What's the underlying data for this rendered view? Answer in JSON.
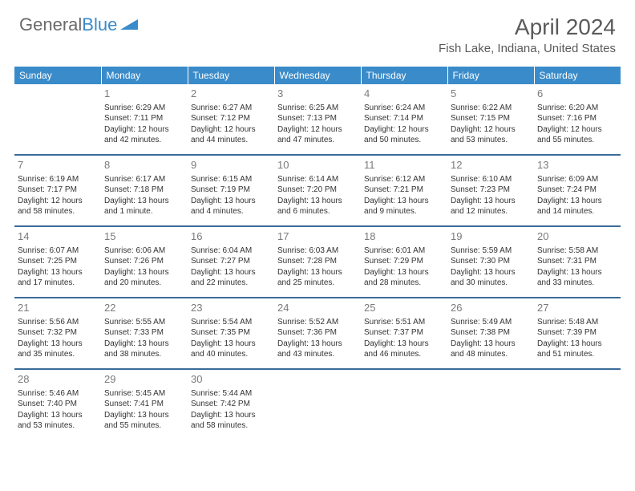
{
  "brand": {
    "part1": "General",
    "part2": "Blue"
  },
  "title": "April 2024",
  "location": "Fish Lake, Indiana, United States",
  "colors": {
    "header_bg": "#3a8bc9",
    "row_sep": "#3a6b9a",
    "text": "#333333",
    "muted": "#7a7a7a",
    "logo_gray": "#6a6a6a",
    "logo_blue": "#3a8bc9",
    "bg": "#ffffff"
  },
  "weekdays": [
    "Sunday",
    "Monday",
    "Tuesday",
    "Wednesday",
    "Thursday",
    "Friday",
    "Saturday"
  ],
  "weeks": [
    [
      null,
      {
        "n": "1",
        "sr": "Sunrise: 6:29 AM",
        "ss": "Sunset: 7:11 PM",
        "d1": "Daylight: 12 hours",
        "d2": "and 42 minutes."
      },
      {
        "n": "2",
        "sr": "Sunrise: 6:27 AM",
        "ss": "Sunset: 7:12 PM",
        "d1": "Daylight: 12 hours",
        "d2": "and 44 minutes."
      },
      {
        "n": "3",
        "sr": "Sunrise: 6:25 AM",
        "ss": "Sunset: 7:13 PM",
        "d1": "Daylight: 12 hours",
        "d2": "and 47 minutes."
      },
      {
        "n": "4",
        "sr": "Sunrise: 6:24 AM",
        "ss": "Sunset: 7:14 PM",
        "d1": "Daylight: 12 hours",
        "d2": "and 50 minutes."
      },
      {
        "n": "5",
        "sr": "Sunrise: 6:22 AM",
        "ss": "Sunset: 7:15 PM",
        "d1": "Daylight: 12 hours",
        "d2": "and 53 minutes."
      },
      {
        "n": "6",
        "sr": "Sunrise: 6:20 AM",
        "ss": "Sunset: 7:16 PM",
        "d1": "Daylight: 12 hours",
        "d2": "and 55 minutes."
      }
    ],
    [
      {
        "n": "7",
        "sr": "Sunrise: 6:19 AM",
        "ss": "Sunset: 7:17 PM",
        "d1": "Daylight: 12 hours",
        "d2": "and 58 minutes."
      },
      {
        "n": "8",
        "sr": "Sunrise: 6:17 AM",
        "ss": "Sunset: 7:18 PM",
        "d1": "Daylight: 13 hours",
        "d2": "and 1 minute."
      },
      {
        "n": "9",
        "sr": "Sunrise: 6:15 AM",
        "ss": "Sunset: 7:19 PM",
        "d1": "Daylight: 13 hours",
        "d2": "and 4 minutes."
      },
      {
        "n": "10",
        "sr": "Sunrise: 6:14 AM",
        "ss": "Sunset: 7:20 PM",
        "d1": "Daylight: 13 hours",
        "d2": "and 6 minutes."
      },
      {
        "n": "11",
        "sr": "Sunrise: 6:12 AM",
        "ss": "Sunset: 7:21 PM",
        "d1": "Daylight: 13 hours",
        "d2": "and 9 minutes."
      },
      {
        "n": "12",
        "sr": "Sunrise: 6:10 AM",
        "ss": "Sunset: 7:23 PM",
        "d1": "Daylight: 13 hours",
        "d2": "and 12 minutes."
      },
      {
        "n": "13",
        "sr": "Sunrise: 6:09 AM",
        "ss": "Sunset: 7:24 PM",
        "d1": "Daylight: 13 hours",
        "d2": "and 14 minutes."
      }
    ],
    [
      {
        "n": "14",
        "sr": "Sunrise: 6:07 AM",
        "ss": "Sunset: 7:25 PM",
        "d1": "Daylight: 13 hours",
        "d2": "and 17 minutes."
      },
      {
        "n": "15",
        "sr": "Sunrise: 6:06 AM",
        "ss": "Sunset: 7:26 PM",
        "d1": "Daylight: 13 hours",
        "d2": "and 20 minutes."
      },
      {
        "n": "16",
        "sr": "Sunrise: 6:04 AM",
        "ss": "Sunset: 7:27 PM",
        "d1": "Daylight: 13 hours",
        "d2": "and 22 minutes."
      },
      {
        "n": "17",
        "sr": "Sunrise: 6:03 AM",
        "ss": "Sunset: 7:28 PM",
        "d1": "Daylight: 13 hours",
        "d2": "and 25 minutes."
      },
      {
        "n": "18",
        "sr": "Sunrise: 6:01 AM",
        "ss": "Sunset: 7:29 PM",
        "d1": "Daylight: 13 hours",
        "d2": "and 28 minutes."
      },
      {
        "n": "19",
        "sr": "Sunrise: 5:59 AM",
        "ss": "Sunset: 7:30 PM",
        "d1": "Daylight: 13 hours",
        "d2": "and 30 minutes."
      },
      {
        "n": "20",
        "sr": "Sunrise: 5:58 AM",
        "ss": "Sunset: 7:31 PM",
        "d1": "Daylight: 13 hours",
        "d2": "and 33 minutes."
      }
    ],
    [
      {
        "n": "21",
        "sr": "Sunrise: 5:56 AM",
        "ss": "Sunset: 7:32 PM",
        "d1": "Daylight: 13 hours",
        "d2": "and 35 minutes."
      },
      {
        "n": "22",
        "sr": "Sunrise: 5:55 AM",
        "ss": "Sunset: 7:33 PM",
        "d1": "Daylight: 13 hours",
        "d2": "and 38 minutes."
      },
      {
        "n": "23",
        "sr": "Sunrise: 5:54 AM",
        "ss": "Sunset: 7:35 PM",
        "d1": "Daylight: 13 hours",
        "d2": "and 40 minutes."
      },
      {
        "n": "24",
        "sr": "Sunrise: 5:52 AM",
        "ss": "Sunset: 7:36 PM",
        "d1": "Daylight: 13 hours",
        "d2": "and 43 minutes."
      },
      {
        "n": "25",
        "sr": "Sunrise: 5:51 AM",
        "ss": "Sunset: 7:37 PM",
        "d1": "Daylight: 13 hours",
        "d2": "and 46 minutes."
      },
      {
        "n": "26",
        "sr": "Sunrise: 5:49 AM",
        "ss": "Sunset: 7:38 PM",
        "d1": "Daylight: 13 hours",
        "d2": "and 48 minutes."
      },
      {
        "n": "27",
        "sr": "Sunrise: 5:48 AM",
        "ss": "Sunset: 7:39 PM",
        "d1": "Daylight: 13 hours",
        "d2": "and 51 minutes."
      }
    ],
    [
      {
        "n": "28",
        "sr": "Sunrise: 5:46 AM",
        "ss": "Sunset: 7:40 PM",
        "d1": "Daylight: 13 hours",
        "d2": "and 53 minutes."
      },
      {
        "n": "29",
        "sr": "Sunrise: 5:45 AM",
        "ss": "Sunset: 7:41 PM",
        "d1": "Daylight: 13 hours",
        "d2": "and 55 minutes."
      },
      {
        "n": "30",
        "sr": "Sunrise: 5:44 AM",
        "ss": "Sunset: 7:42 PM",
        "d1": "Daylight: 13 hours",
        "d2": "and 58 minutes."
      },
      null,
      null,
      null,
      null
    ]
  ]
}
